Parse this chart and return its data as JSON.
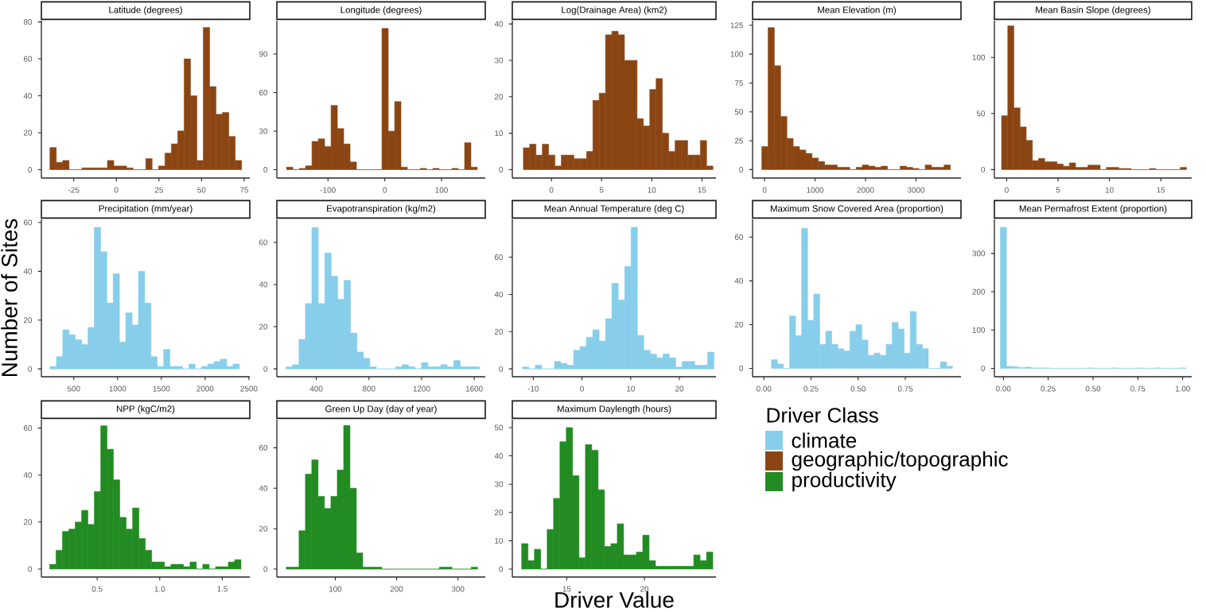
{
  "chart_data": [
    {
      "type": "histogram",
      "title": "Latitude (degrees)",
      "color": "#8B4513",
      "xlim": [
        -44,
        78.3
      ],
      "ylim": [
        -4.5,
        80.7
      ],
      "xticks": [
        -25,
        0,
        25,
        50,
        75
      ],
      "yticks": [
        0,
        20,
        40,
        60,
        80
      ],
      "bins": [
        -39,
        -35.25,
        -31.5,
        -27.75,
        -24,
        -20.25,
        -16.5,
        -12.75,
        -9,
        -5.25,
        -1.5,
        2.25,
        6,
        9.75,
        13.5,
        17.25,
        21,
        24.75,
        28.5,
        32.25,
        36,
        39.75,
        43.5,
        47.25,
        51,
        54.75,
        58.5,
        62.25,
        66,
        69.75,
        73.5
      ],
      "values": [
        12,
        4,
        5,
        0,
        0,
        1,
        1,
        1,
        1,
        5,
        2,
        2,
        1,
        0,
        0,
        6,
        0,
        2,
        9,
        14,
        21,
        60,
        40,
        5,
        77,
        45,
        30,
        31,
        18,
        5
      ]
    },
    {
      "type": "histogram",
      "title": "Longitude (degrees)",
      "color": "#8B4513",
      "xlim": [
        -190,
        177
      ],
      "ylim": [
        -6.5,
        116
      ],
      "xticks": [
        -100,
        0,
        100
      ],
      "yticks": [
        0,
        30,
        60,
        90
      ],
      "bins": [
        -173,
        -161.8,
        -150.6,
        -139.4,
        -128.2,
        -117,
        -105.8,
        -94.6,
        -83.4,
        -72.2,
        -61,
        -49.8,
        -38.6,
        -27.4,
        -16.2,
        -5,
        6.2,
        17.4,
        28.6,
        39.8,
        51,
        62.2,
        73.4,
        84.6,
        95.8,
        107,
        118.2,
        129.4,
        140.6,
        151.8,
        163
      ],
      "values": [
        2,
        0,
        1,
        3,
        22,
        24,
        18,
        50,
        32,
        20,
        6,
        0,
        0,
        0,
        0,
        110,
        30,
        53,
        2,
        0,
        0,
        1,
        0,
        1,
        0,
        0,
        1,
        0,
        21,
        2
      ]
    },
    {
      "type": "histogram",
      "title": "Log(Drainage Area) (km2)",
      "color": "#8B4513",
      "xlim": [
        -3.9,
        16.4
      ],
      "ylim": [
        -2.3,
        40.9
      ],
      "xticks": [
        0,
        5,
        10,
        15
      ],
      "yticks": [
        0,
        10,
        20,
        30,
        40
      ],
      "bins": [
        -2.8,
        -2.17,
        -1.54,
        -0.91,
        -0.28,
        0.35,
        0.98,
        1.61,
        2.24,
        2.87,
        3.5,
        4.13,
        4.76,
        5.39,
        6.02,
        6.65,
        7.28,
        7.91,
        8.54,
        9.17,
        9.8,
        10.43,
        11.06,
        11.69,
        12.32,
        12.95,
        13.58,
        14.21,
        14.84,
        15.47,
        16.1
      ],
      "values": [
        6,
        7,
        4,
        7,
        4,
        1,
        4,
        4,
        3,
        3,
        5,
        19,
        21,
        37,
        38,
        37,
        30,
        30,
        14,
        12,
        22,
        25,
        10,
        5,
        8,
        8,
        4,
        4,
        8,
        1
      ]
    },
    {
      "type": "histogram",
      "title": "Mean Elevation (m)",
      "color": "#8B4513",
      "xlim": [
        -238,
        3890
      ],
      "ylim": [
        -7.3,
        129
      ],
      "xticks": [
        0,
        1000,
        2000,
        3000
      ],
      "yticks": [
        0,
        25,
        50,
        75,
        100,
        125
      ],
      "bins": [
        -55,
        69.5,
        194,
        318.5,
        443,
        567.5,
        692,
        816.5,
        941,
        1065.5,
        1190,
        1314.5,
        1439,
        1563.5,
        1688,
        1812.5,
        1937,
        2061.5,
        2186,
        2310.5,
        2435,
        2559.5,
        2684,
        2808.5,
        2933,
        3057.5,
        3182,
        3306.5,
        3431,
        3555.5,
        3680
      ],
      "values": [
        20,
        123,
        90,
        46,
        27,
        20,
        17,
        14,
        10,
        7,
        4,
        4,
        2,
        2,
        0,
        2,
        4,
        3,
        2,
        3,
        0,
        0,
        3,
        2,
        1,
        0,
        4,
        2,
        2,
        4
      ]
    },
    {
      "type": "histogram",
      "title": "Mean Basin Slope (degrees)",
      "color": "#8B4513",
      "xlim": [
        -1.2,
        18
      ],
      "ylim": [
        -7.5,
        132.7
      ],
      "xticks": [
        0,
        5,
        10,
        15
      ],
      "yticks": [
        0,
        50,
        100
      ],
      "bins": [
        -0.5,
        0.1,
        0.7,
        1.3,
        1.9,
        2.5,
        3.1,
        3.7,
        4.3,
        4.9,
        5.5,
        6.1,
        6.7,
        7.3,
        7.9,
        8.5,
        9.1,
        9.7,
        10.3,
        10.9,
        11.5,
        12.1,
        12.7,
        13.3,
        13.9,
        14.5,
        15.1,
        15.7,
        16.3,
        16.9,
        17.5
      ],
      "values": [
        48,
        128,
        55,
        38,
        26,
        8,
        10,
        7,
        7,
        5,
        3,
        6,
        2,
        2,
        4,
        4,
        0,
        2,
        2,
        1,
        1,
        0,
        0,
        0,
        1,
        0,
        0,
        0,
        0,
        2
      ]
    },
    {
      "type": "histogram",
      "title": "Precipitation (mm/year)",
      "ylabel": "Number of Sites",
      "color": "#87CEEB",
      "xlim": [
        130,
        2510
      ],
      "ylim": [
        -3.2,
        61.3
      ],
      "xticks": [
        500,
        1000,
        1500,
        2000,
        2500
      ],
      "yticks": [
        0,
        20,
        40,
        60
      ],
      "bins": [
        230,
        302,
        374,
        446,
        518,
        590,
        662,
        734,
        806,
        878,
        950,
        1022,
        1094,
        1166,
        1238,
        1310,
        1382,
        1454,
        1526,
        1598,
        1670,
        1742,
        1814,
        1886,
        1958,
        2030,
        2102,
        2174,
        2246,
        2318,
        2390
      ],
      "values": [
        1,
        5,
        16,
        14,
        12,
        10,
        17,
        58,
        48,
        27,
        39,
        11,
        23,
        18,
        40,
        27,
        5,
        1,
        8,
        1,
        1,
        0,
        2,
        0,
        1,
        2,
        3,
        4,
        1,
        2
      ]
    },
    {
      "type": "histogram",
      "title": "Evapotranspiration (kg/m2)",
      "color": "#87CEEB",
      "xlim": [
        100,
        1684
      ],
      "ylim": [
        -3.7,
        70.9
      ],
      "xticks": [
        400,
        800,
        1200,
        1600
      ],
      "yticks": [
        0,
        20,
        40,
        60
      ],
      "bins": [
        170,
        219,
        268,
        317,
        366,
        415,
        464,
        513,
        562,
        611,
        660,
        709,
        758,
        807,
        856,
        905,
        954,
        1003,
        1052,
        1101,
        1150,
        1199,
        1248,
        1297,
        1346,
        1395,
        1444,
        1493,
        1542,
        1591,
        1640
      ],
      "values": [
        1,
        2,
        14,
        31,
        67,
        31,
        55,
        44,
        33,
        42,
        17,
        8,
        5,
        1,
        0,
        0,
        0,
        1,
        2,
        1,
        0,
        3,
        1,
        1,
        2,
        1,
        4,
        1,
        1,
        1
      ]
    },
    {
      "type": "histogram",
      "title": "Mean Annual Temperature (deg C)",
      "color": "#87CEEB",
      "xlim": [
        -14.3,
        27.5
      ],
      "ylim": [
        -4.2,
        80.3
      ],
      "xticks": [
        -10,
        0,
        10,
        20
      ],
      "yticks": [
        0,
        20,
        40,
        60
      ],
      "bins": [
        -12.2,
        -10.89,
        -9.58,
        -8.27,
        -6.96,
        -5.65,
        -4.34,
        -3.03,
        -1.72,
        -0.41,
        0.9,
        2.21,
        3.52,
        4.83,
        6.14,
        7.45,
        8.76,
        10.07,
        11.38,
        12.69,
        14,
        15.31,
        16.62,
        17.93,
        19.24,
        20.55,
        21.86,
        23.17,
        24.48,
        25.79,
        27.1
      ],
      "values": [
        1,
        0,
        2,
        0,
        0,
        4,
        3,
        2,
        10,
        12,
        17,
        21,
        15,
        27,
        46,
        37,
        55,
        76,
        18,
        10,
        8,
        6,
        8,
        6,
        1,
        4,
        4,
        2,
        2,
        9
      ]
    },
    {
      "type": "histogram",
      "title": "Maximum Snow Covered Area (proportion)",
      "color": "#87CEEB",
      "xlim": [
        -0.06,
        1.045
      ],
      "ylim": [
        -3.8,
        68.1
      ],
      "xticks": [
        {
          "value": 0,
          "label": "0.00"
        },
        0.25,
        {
          "value": 0.5,
          "label": "0.50"
        },
        0.75
      ],
      "yticks": [
        0,
        20,
        40,
        60
      ],
      "bins": [
        0.04,
        0.072,
        0.104,
        0.136,
        0.168,
        0.2,
        0.232,
        0.264,
        0.296,
        0.328,
        0.36,
        0.392,
        0.424,
        0.456,
        0.488,
        0.52,
        0.552,
        0.584,
        0.616,
        0.648,
        0.68,
        0.712,
        0.744,
        0.776,
        0.808,
        0.84,
        0.872,
        0.904,
        0.936,
        0.968,
        1.0
      ],
      "values": [
        4,
        2,
        0,
        24,
        15,
        64,
        22,
        34,
        11,
        17,
        11,
        9,
        8,
        17,
        20,
        13,
        6,
        7,
        6,
        11,
        21,
        18,
        7,
        26,
        11,
        9,
        0,
        0,
        3,
        1
      ]
    },
    {
      "type": "histogram",
      "title": "Mean Permafrost Extent (proportion)",
      "color": "#87CEEB",
      "xlim": [
        -0.05,
        1.05
      ],
      "ylim": [
        -21.9,
        389
      ],
      "xticks": [
        {
          "value": 0,
          "label": "0.00"
        },
        0.25,
        {
          "value": 0.5,
          "label": "0.50"
        },
        0.75,
        {
          "value": 1,
          "label": "1.00"
        }
      ],
      "yticks": [
        0,
        100,
        200,
        300
      ],
      "bins": [
        -0.017,
        0.0175,
        0.052,
        0.0865,
        0.121,
        0.1555,
        0.19,
        0.2245,
        0.259,
        0.2935,
        0.328,
        0.3625,
        0.397,
        0.4315,
        0.466,
        0.5005,
        0.535,
        0.5695,
        0.604,
        0.6385,
        0.673,
        0.7075,
        0.742,
        0.7765,
        0.811,
        0.8455,
        0.88,
        0.9145,
        0.949,
        0.9835,
        1.018
      ],
      "values": [
        368,
        5,
        4,
        2,
        3,
        1,
        1,
        1,
        0,
        0,
        0,
        0,
        0,
        0,
        1,
        0,
        0,
        0,
        1,
        0,
        0,
        0,
        1,
        0,
        0,
        1,
        0,
        0,
        0,
        1
      ]
    },
    {
      "type": "histogram",
      "title": "NPP (kgC/m2)",
      "color": "#228B22",
      "xlim": [
        0.054,
        1.72
      ],
      "ylim": [
        -3.4,
        63.6
      ],
      "xticks": [
        0.5,
        {
          "value": 1,
          "label": "1.0"
        },
        1.5
      ],
      "yticks": [
        0,
        20,
        40,
        60
      ],
      "bins": [
        0.12,
        0.171,
        0.222,
        0.273,
        0.324,
        0.375,
        0.426,
        0.477,
        0.528,
        0.579,
        0.63,
        0.681,
        0.732,
        0.783,
        0.834,
        0.885,
        0.936,
        0.987,
        1.038,
        1.089,
        1.14,
        1.191,
        1.242,
        1.293,
        1.344,
        1.395,
        1.446,
        1.497,
        1.548,
        1.599,
        1.65
      ],
      "values": [
        2,
        8,
        16,
        17,
        20,
        25,
        19,
        33,
        61,
        51,
        38,
        22,
        17,
        26,
        13,
        8,
        3,
        3,
        1,
        2,
        2,
        1,
        3,
        0,
        2,
        0,
        1,
        1,
        3,
        4
      ]
    },
    {
      "type": "histogram",
      "title": "Green Up Day (day of year)",
      "color": "#228B22",
      "xlim": [
        4.7,
        344.6
      ],
      "ylim": [
        -3.9,
        73.9
      ],
      "xticks": [
        100,
        200,
        300
      ],
      "yticks": [
        0,
        20,
        40,
        60
      ],
      "bins": [
        20,
        30.4,
        40.8,
        51.2,
        61.6,
        72,
        82.4,
        92.8,
        103.2,
        113.6,
        124,
        134.4,
        144.8,
        155.2,
        165.6,
        176,
        186.4,
        196.8,
        207.2,
        217.6,
        228,
        238.4,
        248.8,
        259.2,
        269.6,
        280,
        290.4,
        300.8,
        311.2,
        321.6,
        332
      ],
      "values": [
        1,
        1,
        19,
        47,
        54,
        36,
        30,
        36,
        49,
        71,
        40,
        8,
        1,
        1,
        1,
        0,
        0,
        0,
        0,
        0,
        0,
        0,
        0,
        0,
        1,
        1,
        0,
        0,
        0,
        1
      ]
    },
    {
      "type": "histogram",
      "title": "Maximum Daylength (hours)",
      "xlabel": "Driver Value",
      "color": "#228B22",
      "xlim": [
        11.5,
        24.6
      ],
      "ylim": [
        -2.8,
        52.8
      ],
      "xticks": [
        15,
        20
      ],
      "yticks": [
        0,
        10,
        20,
        30,
        40,
        50
      ],
      "bins": [
        12.1,
        12.51,
        12.92,
        13.33,
        13.74,
        14.15,
        14.56,
        14.97,
        15.38,
        15.79,
        16.2,
        16.61,
        17.02,
        17.43,
        17.84,
        18.25,
        18.66,
        19.07,
        19.48,
        19.89,
        20.3,
        20.71,
        21.12,
        21.53,
        21.94,
        22.35,
        22.76,
        23.17,
        23.58,
        23.99,
        24.4
      ],
      "values": [
        9,
        3,
        7,
        0,
        14,
        25,
        45,
        50,
        33,
        4,
        44,
        42,
        28,
        8,
        9,
        16,
        5,
        5,
        6,
        12,
        3,
        1,
        1,
        1,
        1,
        1,
        1,
        5,
        3,
        6
      ]
    },
    {
      "type": "other",
      "legend_title": "Driver Class",
      "series": [
        {
          "name": "climate",
          "color": "#87CEEB"
        },
        {
          "name": "geographic/topographic",
          "color": "#8B4513"
        },
        {
          "name": "productivity",
          "color": "#228B22"
        }
      ]
    }
  ]
}
